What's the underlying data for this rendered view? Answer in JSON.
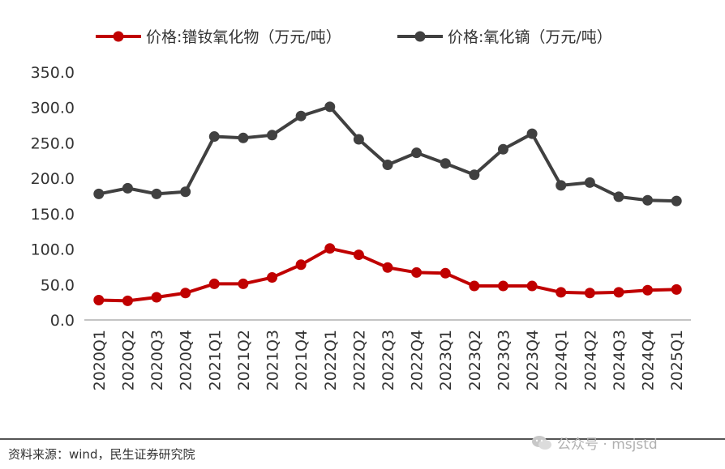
{
  "chart_data": {
    "type": "line",
    "categories": [
      "2020Q1",
      "2020Q2",
      "2020Q3",
      "2020Q4",
      "2021Q1",
      "2021Q2",
      "2021Q3",
      "2021Q4",
      "2022Q1",
      "2022Q2",
      "2022Q3",
      "2022Q4",
      "2023Q1",
      "2023Q2",
      "2023Q3",
      "2023Q4",
      "2024Q1",
      "2024Q2",
      "2024Q3",
      "2024Q4",
      "2025Q1"
    ],
    "series": [
      {
        "name": "价格:镨钕氧化物（万元/吨）",
        "color": "#c00000",
        "values": [
          28,
          27,
          32,
          38,
          51,
          51,
          60,
          78,
          101,
          92,
          74,
          67,
          66,
          48,
          48,
          48,
          39,
          38,
          39,
          42,
          43
        ]
      },
      {
        "name": "价格:氧化镝（万元/吨）",
        "color": "#404040",
        "values": [
          178,
          186,
          178,
          181,
          259,
          257,
          261,
          288,
          301,
          255,
          219,
          236,
          221,
          205,
          241,
          263,
          190,
          194,
          174,
          169,
          168
        ]
      }
    ],
    "yticks": [
      "0.0",
      "50.0",
      "100.0",
      "150.0",
      "200.0",
      "250.0",
      "300.0",
      "350.0"
    ],
    "ylim": [
      0,
      350
    ],
    "grid": false,
    "legend": "top"
  },
  "footer": {
    "source": "资料来源：wind，民生证券研究院",
    "watermark": "公众号 · msjstd",
    "watermark_icon": "wechat-icon"
  }
}
